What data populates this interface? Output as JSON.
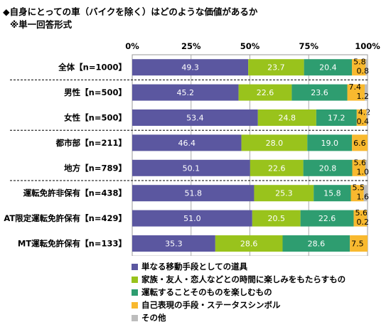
{
  "title": "◆自身にとっての車（バイクを除く）はどのような価値があるか",
  "subtitle": "※単一回答形式",
  "chart_data": {
    "type": "bar",
    "orientation": "horizontal",
    "stacked": "percent",
    "xlim": [
      0,
      100
    ],
    "x_ticks": [
      "0%",
      "25%",
      "50%",
      "75%",
      "100%"
    ],
    "grid": true,
    "legend_position": "bottom",
    "categories": [
      "全体【n=1000】",
      "男性【n=500】",
      "女性【n=500】",
      "都市部【n=211】",
      "地方【n=789】",
      "運転免許非保有【n=438】",
      "AT限定運転免許保有【n=429】",
      "MT運転免許保有【n=133】"
    ],
    "series": [
      {
        "name": "単なる移動手段としての道具",
        "color": "#5b57a0",
        "values": [
          49.3,
          45.2,
          53.4,
          46.4,
          50.1,
          51.8,
          51.0,
          35.3
        ]
      },
      {
        "name": "家族・友人・恋人などとの時間に楽しみをもたらすもの",
        "color": "#99c31c",
        "values": [
          23.7,
          22.6,
          24.8,
          28.0,
          22.6,
          25.3,
          20.5,
          28.6
        ]
      },
      {
        "name": "運転することそのものを楽しむもの",
        "color": "#2e9d70",
        "values": [
          20.4,
          23.6,
          17.2,
          19.0,
          20.8,
          15.8,
          22.6,
          28.6
        ]
      },
      {
        "name": "自己表現の手段・ステータスシンボル",
        "color": "#f8b92f",
        "values": [
          5.8,
          7.4,
          4.2,
          6.6,
          5.6,
          5.5,
          5.6,
          7.5
        ]
      },
      {
        "name": "その他",
        "color": "#bdbdbd",
        "values": [
          0.8,
          1.2,
          0.4,
          0.0,
          1.0,
          1.6,
          0.2,
          0.0
        ]
      }
    ],
    "separators_after": [
      0,
      2,
      4
    ]
  }
}
